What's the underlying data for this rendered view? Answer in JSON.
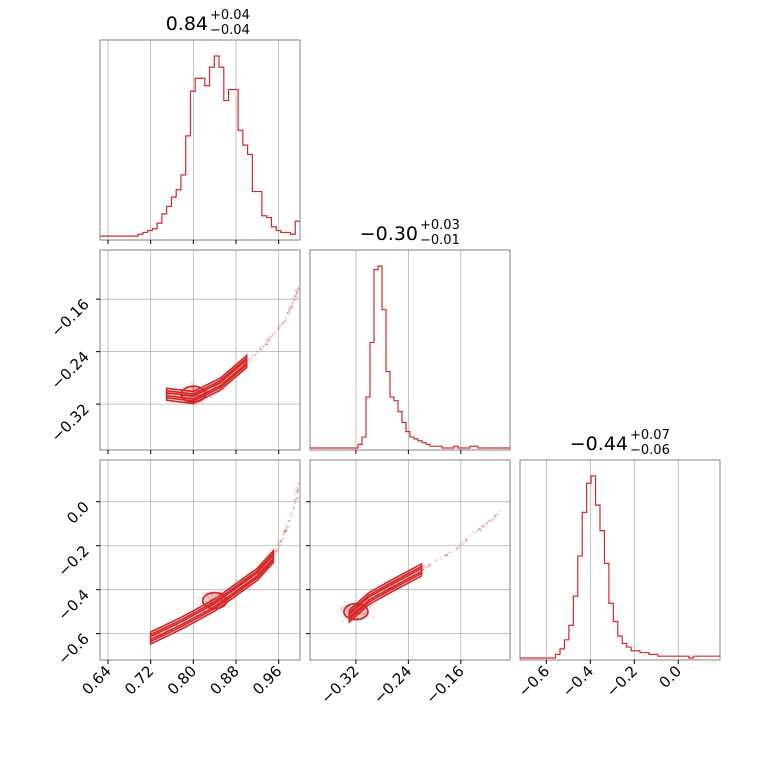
{
  "color": "#d62728",
  "chart_data": {
    "type": "corner",
    "parameters": [
      {
        "title": {
          "main": "0.84",
          "plus": "+0.04",
          "minus": "−0.04"
        },
        "range": [
          0.625,
          1.0
        ],
        "ticks": [
          0.64,
          0.72,
          0.8,
          0.88,
          0.96
        ],
        "tick_labels": [
          "0.64",
          "0.72",
          "0.80",
          "0.88",
          "0.96"
        ]
      },
      {
        "title": {
          "main": "−0.30",
          "plus": "+0.03",
          "minus": "−0.01"
        },
        "range": [
          -0.39,
          -0.085
        ],
        "ticks": [
          -0.32,
          -0.24,
          -0.16
        ],
        "tick_labels": [
          "−0.32",
          "−0.24",
          "−0.16"
        ]
      },
      {
        "title": {
          "main": "−0.44",
          "plus": "+0.07",
          "minus": "−0.06"
        },
        "range": [
          -0.72,
          0.19
        ],
        "ticks": [
          -0.6,
          -0.4,
          -0.2,
          0.0
        ],
        "tick_labels": [
          "−0.6",
          "−0.4",
          "−0.2",
          "0.0"
        ]
      }
    ],
    "histograms": [
      {
        "param": 0,
        "bins": [
          0.625,
          1.0
        ],
        "counts": [
          1,
          1,
          1,
          1,
          1,
          1,
          1,
          1,
          2,
          3,
          4,
          5,
          8,
          13,
          17,
          22,
          26,
          34,
          55,
          79,
          86,
          86,
          82,
          92,
          98,
          92,
          74,
          80,
          80,
          58,
          50,
          45,
          25,
          25,
          12,
          11,
          6,
          4,
          3,
          3,
          2,
          9
        ]
      },
      {
        "param": 1,
        "bins": [
          -0.39,
          -0.085
        ],
        "counts": [
          0,
          0,
          0,
          0,
          0,
          0,
          0,
          0,
          0,
          0,
          0,
          0,
          2,
          6,
          28,
          58,
          98,
          100,
          76,
          42,
          28,
          26,
          20,
          14,
          9,
          6,
          5,
          4,
          3,
          2,
          1,
          1,
          1,
          0,
          0,
          0,
          1,
          0,
          0,
          0,
          1,
          1,
          0,
          0,
          0,
          0,
          0,
          0,
          0,
          0
        ]
      },
      {
        "param": 2,
        "bins": [
          -0.72,
          0.19
        ],
        "counts": [
          0,
          0,
          0,
          0,
          0,
          0,
          0,
          0,
          2,
          5,
          10,
          18,
          34,
          56,
          80,
          96,
          100,
          84,
          70,
          52,
          30,
          20,
          12,
          8,
          6,
          4,
          4,
          3,
          3,
          2,
          2,
          1,
          1,
          1,
          1,
          1,
          1,
          1,
          0,
          1,
          1,
          1,
          1,
          1,
          1
        ]
      }
    ],
    "scatter_panels": [
      {
        "x_param": 0,
        "y_param": 1,
        "ridge": [
          [
            0.75,
            -0.305
          ],
          [
            0.8,
            -0.31
          ],
          [
            0.85,
            -0.29
          ],
          [
            0.9,
            -0.255
          ],
          [
            0.94,
            -0.225
          ],
          [
            0.97,
            -0.195
          ],
          [
            0.99,
            -0.16
          ],
          [
            1.0,
            -0.14
          ]
        ],
        "core": [
          0.8,
          -0.305
        ]
      },
      {
        "x_param": 0,
        "y_param": 2,
        "ridge": [
          [
            0.72,
            -0.62
          ],
          [
            0.78,
            -0.55
          ],
          [
            0.84,
            -0.47
          ],
          [
            0.88,
            -0.4
          ],
          [
            0.92,
            -0.33
          ],
          [
            0.95,
            -0.25
          ],
          [
            0.97,
            -0.15
          ],
          [
            0.99,
            -0.02
          ],
          [
            1.0,
            0.1
          ]
        ],
        "core": [
          0.84,
          -0.45
        ]
      },
      {
        "x_param": 1,
        "y_param": 2,
        "ridge": [
          [
            -0.33,
            -0.52
          ],
          [
            -0.3,
            -0.44
          ],
          [
            -0.27,
            -0.39
          ],
          [
            -0.22,
            -0.31
          ],
          [
            -0.17,
            -0.22
          ],
          [
            -0.13,
            -0.12
          ],
          [
            -0.1,
            -0.05
          ]
        ],
        "core": [
          -0.32,
          -0.5
        ]
      }
    ]
  }
}
